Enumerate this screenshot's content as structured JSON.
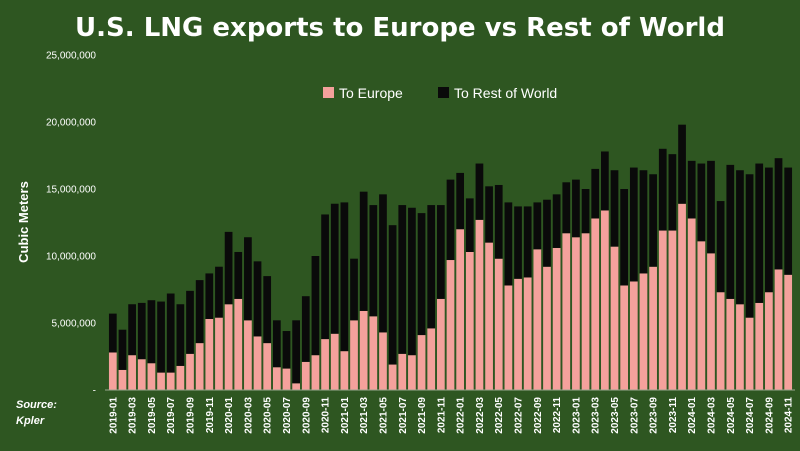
{
  "chart_data": {
    "type": "bar",
    "stacked": true,
    "title": "U.S. LNG exports to Europe vs Rest of World",
    "ylabel": "Cubic Meters",
    "xlabel": "",
    "ylim": [
      0,
      25000000
    ],
    "yticks": [
      0,
      5000000,
      10000000,
      15000000,
      20000000,
      25000000
    ],
    "ytick_labels": [
      "-",
      "5,000,000",
      "10,000,000",
      "15,000,000",
      "20,000,000",
      "25,000,000"
    ],
    "grid": false,
    "legend_position": "top-center",
    "source_label": "Source:",
    "source_name": "Kpler",
    "categories": [
      "2019-01",
      "2019-02",
      "2019-03",
      "2019-04",
      "2019-05",
      "2019-06",
      "2019-07",
      "2019-08",
      "2019-09",
      "2019-10",
      "2019-11",
      "2019-12",
      "2020-01",
      "2020-02",
      "2020-03",
      "2020-04",
      "2020-05",
      "2020-06",
      "2020-07",
      "2020-08",
      "2020-09",
      "2020-10",
      "2020-11",
      "2020-12",
      "2021-01",
      "2021-02",
      "2021-03",
      "2021-04",
      "2021-05",
      "2021-06",
      "2021-07",
      "2021-08",
      "2021-09",
      "2021-10",
      "2021-11",
      "2021-12",
      "2022-01",
      "2022-02",
      "2022-03",
      "2022-04",
      "2022-05",
      "2022-06",
      "2022-07",
      "2022-08",
      "2022-09",
      "2022-10",
      "2022-11",
      "2022-12",
      "2023-01",
      "2023-02",
      "2023-03",
      "2023-04",
      "2023-05",
      "2023-06",
      "2023-07",
      "2023-08",
      "2023-09",
      "2023-10",
      "2023-11",
      "2023-12",
      "2024-01",
      "2024-02",
      "2024-03",
      "2024-04",
      "2024-05",
      "2024-06",
      "2024-07",
      "2024-08",
      "2024-09",
      "2024-10",
      "2024-11"
    ],
    "series": [
      {
        "name": "To Europe",
        "color": "#f4a19c",
        "values": [
          2800000,
          1500000,
          2600000,
          2300000,
          2000000,
          1300000,
          1300000,
          1800000,
          2700000,
          3500000,
          5300000,
          5400000,
          6400000,
          6800000,
          5200000,
          4000000,
          3500000,
          1700000,
          1600000,
          500000,
          2100000,
          2600000,
          3800000,
          4200000,
          2900000,
          5200000,
          5900000,
          5500000,
          4300000,
          1900000,
          2700000,
          2600000,
          4100000,
          4600000,
          6800000,
          9700000,
          12000000,
          10300000,
          12700000,
          11000000,
          9800000,
          7800000,
          8300000,
          8400000,
          10500000,
          9200000,
          10600000,
          11700000,
          11400000,
          11700000,
          12800000,
          13400000,
          10700000,
          7800000,
          8100000,
          8700000,
          9200000,
          11900000,
          11900000,
          13900000,
          12800000,
          11100000,
          10200000,
          7300000,
          6800000,
          6400000,
          5400000,
          6500000,
          7300000,
          9000000,
          8600000
        ]
      },
      {
        "name": "To Rest of World",
        "color": "#0a0a0a",
        "values": [
          2900000,
          3000000,
          3800000,
          4200000,
          4700000,
          5300000,
          5900000,
          4600000,
          4700000,
          4700000,
          3400000,
          3800000,
          5400000,
          3500000,
          6200000,
          5600000,
          5000000,
          3500000,
          2800000,
          4700000,
          4900000,
          7400000,
          9300000,
          9700000,
          11100000,
          4600000,
          8900000,
          8300000,
          10300000,
          10400000,
          11100000,
          11000000,
          9100000,
          9200000,
          7000000,
          6000000,
          4200000,
          4000000,
          4200000,
          4200000,
          5500000,
          6200000,
          5400000,
          5300000,
          3500000,
          5000000,
          4000000,
          3800000,
          4300000,
          3300000,
          3700000,
          4400000,
          5700000,
          7200000,
          8500000,
          7700000,
          6900000,
          6100000,
          5700000,
          5900000,
          4300000,
          5800000,
          6900000,
          6800000,
          10000000,
          10000000,
          10700000,
          10400000,
          9300000,
          8300000,
          8000000
        ]
      }
    ]
  }
}
